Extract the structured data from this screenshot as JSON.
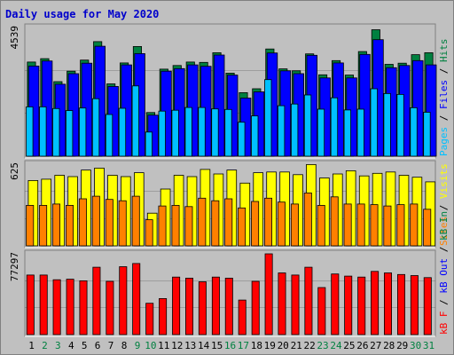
{
  "title": "Daily usage for May 2020",
  "colors": {
    "background": "#c0c0c0",
    "panel": "#c0c0c0",
    "title": "#0000cc",
    "hits": "#008040",
    "files": "#0000ff",
    "pages": "#00c0ff",
    "visits": "#ffff00",
    "sites": "#ff8000",
    "kbin": "#008040",
    "kbout": "#0000ff",
    "kbf": "#ff0000",
    "weekend_day": "#008040",
    "weekday_day": "#000000",
    "separator": "#000000"
  },
  "chart_data": [
    {
      "type": "bar",
      "panel": "hits-files-pages",
      "max_label": "4539",
      "ylim": [
        0,
        4539
      ],
      "legend": [
        {
          "text": "Pages",
          "color": "#00c0ff"
        },
        {
          "text": " / ",
          "color": "#000000"
        },
        {
          "text": "Files",
          "color": "#0000ff"
        },
        {
          "text": " / ",
          "color": "#000000"
        },
        {
          "text": "Hits",
          "color": "#008040"
        }
      ],
      "categories": [
        "1",
        "2",
        "3",
        "4",
        "5",
        "6",
        "7",
        "8",
        "9",
        "10",
        "11",
        "12",
        "13",
        "14",
        "15",
        "16",
        "17",
        "18",
        "19",
        "20",
        "21",
        "22",
        "23",
        "24",
        "25",
        "26",
        "27",
        "28",
        "29",
        "30",
        "31"
      ],
      "series": [
        {
          "name": "Hits",
          "color": "#008040",
          "values": [
            3320,
            3440,
            2630,
            3000,
            3390,
            4040,
            2550,
            3290,
            3870,
            1540,
            3070,
            3200,
            3320,
            3310,
            3650,
            2930,
            2240,
            2380,
            3780,
            3080,
            3010,
            3610,
            2870,
            3370,
            2860,
            3690,
            4460,
            3240,
            3280,
            3580,
            3650
          ]
        },
        {
          "name": "Files",
          "color": "#0000ff",
          "values": [
            3180,
            3360,
            2540,
            2910,
            3280,
            3880,
            2460,
            3220,
            3620,
            1450,
            3000,
            3090,
            3220,
            3170,
            3570,
            2860,
            2050,
            2270,
            3640,
            3010,
            2910,
            3560,
            2760,
            3290,
            2760,
            3590,
            4110,
            3120,
            3200,
            3370,
            3220
          ]
        },
        {
          "name": "Pages",
          "color": "#00c0ff",
          "values": [
            1740,
            1740,
            1680,
            1610,
            1700,
            2030,
            1470,
            1690,
            2480,
            850,
            1590,
            1620,
            1720,
            1720,
            1670,
            1650,
            1200,
            1420,
            2700,
            1780,
            1840,
            2160,
            1660,
            2060,
            1630,
            1660,
            2380,
            2210,
            2180,
            1710,
            1550
          ]
        }
      ]
    },
    {
      "type": "bar",
      "panel": "visits-sites",
      "max_label": "625",
      "ylim": [
        0,
        625
      ],
      "legend": [
        {
          "text": "Sites",
          "color": "#ff8000"
        },
        {
          "text": " / ",
          "color": "#000000"
        },
        {
          "text": "Visits",
          "color": "#ffff00"
        }
      ],
      "categories": [
        "1",
        "2",
        "3",
        "4",
        "5",
        "6",
        "7",
        "8",
        "9",
        "10",
        "11",
        "12",
        "13",
        "14",
        "15",
        "16",
        "17",
        "18",
        "19",
        "20",
        "21",
        "22",
        "23",
        "24",
        "25",
        "26",
        "27",
        "28",
        "29",
        "30",
        "31"
      ],
      "series": [
        {
          "name": "Visits",
          "color": "#ffff00",
          "values": [
            500,
            510,
            540,
            530,
            580,
            595,
            540,
            530,
            560,
            250,
            435,
            540,
            530,
            585,
            550,
            580,
            480,
            560,
            565,
            565,
            545,
            622,
            520,
            550,
            575,
            535,
            555,
            565,
            540,
            525,
            490
          ]
        },
        {
          "name": "Sites",
          "color": "#ff8000",
          "values": [
            310,
            310,
            320,
            310,
            360,
            380,
            355,
            345,
            380,
            200,
            305,
            310,
            300,
            365,
            345,
            360,
            290,
            340,
            365,
            335,
            320,
            405,
            310,
            375,
            320,
            320,
            315,
            305,
            315,
            320,
            280
          ]
        }
      ]
    },
    {
      "type": "bar",
      "panel": "kbytes",
      "max_label": "77297",
      "ylim": [
        0,
        77297
      ],
      "legend": [
        {
          "text": "kB F",
          "color": "#ff0000"
        },
        {
          "text": " / ",
          "color": "#000000"
        },
        {
          "text": "kB Out",
          "color": "#0000ff"
        },
        {
          "text": " / ",
          "color": "#000000"
        },
        {
          "text": "kB In",
          "color": "#008040"
        }
      ],
      "categories": [
        "1",
        "2",
        "3",
        "4",
        "5",
        "6",
        "7",
        "8",
        "9",
        "10",
        "11",
        "12",
        "13",
        "14",
        "15",
        "16",
        "17",
        "18",
        "19",
        "20",
        "21",
        "22",
        "23",
        "24",
        "25",
        "26",
        "27",
        "28",
        "29",
        "30",
        "31"
      ],
      "series": [
        {
          "name": "kB F",
          "color": "#ff0000",
          "values": [
            57000,
            57000,
            52500,
            53000,
            51500,
            64500,
            51000,
            65000,
            68000,
            30000,
            34500,
            55000,
            54000,
            50500,
            55000,
            54000,
            33000,
            51000,
            77297,
            59000,
            57000,
            64500,
            45000,
            58000,
            56000,
            55000,
            60500,
            59000,
            57500,
            56500,
            54500
          ]
        }
      ]
    }
  ],
  "day_labels": [
    {
      "text": "1",
      "weekend": false
    },
    {
      "text": "2",
      "weekend": true
    },
    {
      "text": "3",
      "weekend": true
    },
    {
      "text": "4",
      "weekend": false
    },
    {
      "text": "5",
      "weekend": false
    },
    {
      "text": "6",
      "weekend": false
    },
    {
      "text": "7",
      "weekend": false
    },
    {
      "text": "8",
      "weekend": false
    },
    {
      "text": "9",
      "weekend": true
    },
    {
      "text": "10",
      "weekend": true
    },
    {
      "text": "11",
      "weekend": false
    },
    {
      "text": "12",
      "weekend": false
    },
    {
      "text": "13",
      "weekend": false
    },
    {
      "text": "14",
      "weekend": false
    },
    {
      "text": "15",
      "weekend": false
    },
    {
      "text": "16",
      "weekend": true
    },
    {
      "text": "17",
      "weekend": true
    },
    {
      "text": "18",
      "weekend": false
    },
    {
      "text": "19",
      "weekend": false
    },
    {
      "text": "20",
      "weekend": false
    },
    {
      "text": "21",
      "weekend": false
    },
    {
      "text": "22",
      "weekend": false
    },
    {
      "text": "23",
      "weekend": true
    },
    {
      "text": "24",
      "weekend": true
    },
    {
      "text": "25",
      "weekend": false
    },
    {
      "text": "26",
      "weekend": false
    },
    {
      "text": "27",
      "weekend": false
    },
    {
      "text": "28",
      "weekend": false
    },
    {
      "text": "29",
      "weekend": false
    },
    {
      "text": "30",
      "weekend": true
    },
    {
      "text": "31",
      "weekend": true
    }
  ]
}
